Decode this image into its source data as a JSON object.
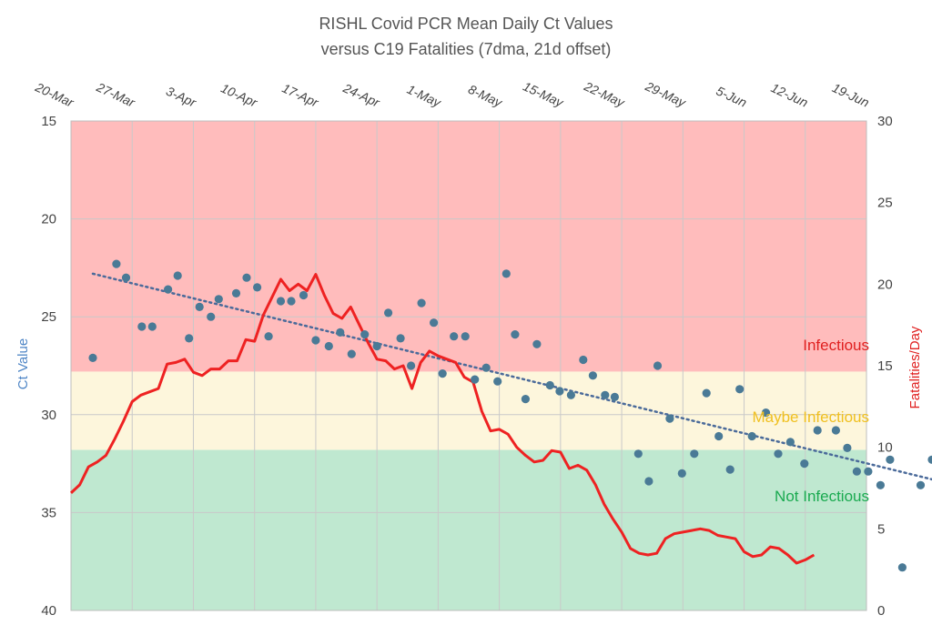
{
  "chart_data": {
    "type": "scatter",
    "title": "RISHL Covid PCR Mean Daily Ct Values",
    "subtitle": "versus C19 Fatalities (7dma, 21d offset)",
    "x_tick_labels": [
      "20-Mar",
      "27-Mar",
      "3-Apr",
      "10-Apr",
      "17-Apr",
      "24-Apr",
      "1-May",
      "8-May",
      "15-May",
      "22-May",
      "29-May",
      "5-Jun",
      "12-Jun",
      "19-Jun"
    ],
    "y_left": {
      "label": "Ct Value",
      "min": 15,
      "max": 40,
      "inverted": true,
      "ticks": [
        15,
        20,
        25,
        30,
        35,
        40
      ]
    },
    "y_right": {
      "label": "Fatalities/Day",
      "min": 0,
      "max": 30,
      "ticks": [
        0,
        5,
        10,
        15,
        20,
        25,
        30
      ]
    },
    "zones": [
      {
        "label": "Infectious",
        "ct_from": 15,
        "ct_to": 27.8,
        "color": "#ffbcbc",
        "text_color": "#e02020"
      },
      {
        "label": "Maybe Infectious",
        "ct_from": 27.8,
        "ct_to": 31.8,
        "color": "#fdf6dc",
        "text_color": "#f0c020"
      },
      {
        "label": "Not Infectious",
        "ct_from": 31.8,
        "ct_to": 40,
        "color": "#bfe8d0",
        "text_color": "#1aaa50"
      }
    ],
    "series": [
      {
        "kind": "ct_scatter",
        "axis": "left",
        "color": "#4a7a96",
        "points": [
          [
            2.5,
            27.1
          ],
          [
            5.2,
            22.3
          ],
          [
            6.3,
            23.0
          ],
          [
            8.1,
            25.5
          ],
          [
            9.3,
            25.5
          ],
          [
            11.1,
            23.6
          ],
          [
            12.2,
            22.9
          ],
          [
            13.5,
            26.1
          ],
          [
            14.7,
            24.5
          ],
          [
            16.0,
            25.0
          ],
          [
            16.9,
            24.1
          ],
          [
            18.9,
            23.8
          ],
          [
            20.1,
            23.0
          ],
          [
            21.3,
            23.5
          ],
          [
            22.6,
            26.0
          ],
          [
            24.0,
            24.2
          ],
          [
            25.2,
            24.2
          ],
          [
            26.6,
            23.9
          ],
          [
            28.0,
            26.2
          ],
          [
            29.5,
            26.5
          ],
          [
            30.8,
            25.8
          ],
          [
            32.1,
            26.9
          ],
          [
            33.6,
            25.9
          ],
          [
            35.0,
            26.5
          ],
          [
            36.3,
            24.8
          ],
          [
            37.7,
            26.1
          ],
          [
            38.9,
            27.5
          ],
          [
            40.1,
            24.3
          ],
          [
            41.5,
            25.3
          ],
          [
            42.5,
            27.9
          ],
          [
            43.8,
            26.0
          ],
          [
            45.1,
            26.0
          ],
          [
            46.2,
            28.2
          ],
          [
            47.5,
            27.6
          ],
          [
            48.8,
            28.3
          ],
          [
            49.8,
            22.8
          ],
          [
            50.8,
            25.9
          ],
          [
            52.0,
            29.2
          ],
          [
            53.3,
            26.4
          ],
          [
            54.8,
            28.5
          ],
          [
            55.9,
            28.8
          ],
          [
            57.2,
            29.0
          ],
          [
            58.6,
            27.2
          ],
          [
            59.7,
            28.0
          ],
          [
            61.1,
            29.0
          ],
          [
            62.2,
            29.1
          ],
          [
            64.9,
            32.0
          ],
          [
            66.1,
            33.4
          ],
          [
            67.1,
            27.5
          ],
          [
            68.5,
            30.2
          ],
          [
            69.9,
            33.0
          ],
          [
            71.3,
            32.0
          ],
          [
            72.7,
            28.9
          ],
          [
            74.1,
            31.1
          ],
          [
            75.4,
            32.8
          ],
          [
            76.5,
            28.7
          ],
          [
            77.9,
            31.1
          ],
          [
            79.5,
            29.9
          ],
          [
            80.9,
            32.0
          ],
          [
            82.3,
            31.4
          ],
          [
            83.9,
            32.5
          ],
          [
            85.4,
            30.8
          ],
          [
            87.5,
            30.8
          ],
          [
            88.8,
            31.7
          ],
          [
            89.9,
            32.9
          ],
          [
            91.2,
            32.9
          ],
          [
            92.6,
            33.6
          ],
          [
            93.7,
            32.3
          ],
          [
            95.1,
            37.8
          ],
          [
            97.2,
            33.6
          ],
          [
            98.5,
            32.3
          ],
          [
            99.9,
            33.3
          ],
          [
            101.2,
            32.4
          ]
        ]
      },
      {
        "kind": "trend",
        "axis": "left",
        "color": "#4a6a9a",
        "points": [
          [
            2.5,
            22.8
          ],
          [
            101.2,
            33.6
          ]
        ]
      },
      {
        "kind": "fatalities_line",
        "axis": "right",
        "color": "#ee2222",
        "points": [
          [
            0,
            7.2
          ],
          [
            1,
            7.7
          ],
          [
            2,
            8.8
          ],
          [
            3,
            9.1
          ],
          [
            4,
            9.5
          ],
          [
            5,
            10.5
          ],
          [
            6,
            11.6
          ],
          [
            7,
            12.8
          ],
          [
            8,
            13.2
          ],
          [
            9,
            13.4
          ],
          [
            10,
            13.6
          ],
          [
            11,
            15.1
          ],
          [
            12,
            15.2
          ],
          [
            13,
            15.4
          ],
          [
            14,
            14.6
          ],
          [
            15,
            14.4
          ],
          [
            16,
            14.8
          ],
          [
            17,
            14.8
          ],
          [
            18,
            15.3
          ],
          [
            19,
            15.3
          ],
          [
            20,
            16.6
          ],
          [
            21,
            16.5
          ],
          [
            22,
            18.1
          ],
          [
            23,
            19.2
          ],
          [
            24,
            20.3
          ],
          [
            25,
            19.6
          ],
          [
            26,
            20.0
          ],
          [
            27,
            19.6
          ],
          [
            28,
            20.6
          ],
          [
            29,
            19.3
          ],
          [
            30,
            18.2
          ],
          [
            31,
            17.9
          ],
          [
            32,
            18.6
          ],
          [
            33,
            17.5
          ],
          [
            34,
            16.4
          ],
          [
            35,
            15.4
          ],
          [
            36,
            15.3
          ],
          [
            37,
            14.8
          ],
          [
            38,
            15.0
          ],
          [
            39,
            13.6
          ],
          [
            40,
            15.2
          ],
          [
            41,
            15.9
          ],
          [
            42,
            15.6
          ],
          [
            43,
            15.4
          ],
          [
            44,
            15.2
          ],
          [
            45,
            14.3
          ],
          [
            46,
            14.0
          ],
          [
            47,
            12.2
          ],
          [
            48,
            11.0
          ],
          [
            49,
            11.1
          ],
          [
            50,
            10.8
          ],
          [
            51,
            10.0
          ],
          [
            52,
            9.5
          ],
          [
            53,
            9.1
          ],
          [
            54,
            9.2
          ],
          [
            55,
            9.8
          ],
          [
            56,
            9.7
          ],
          [
            57,
            8.7
          ],
          [
            58,
            8.9
          ],
          [
            59,
            8.6
          ],
          [
            60,
            7.7
          ],
          [
            61,
            6.5
          ],
          [
            62,
            5.6
          ],
          [
            63,
            4.8
          ],
          [
            64,
            3.8
          ],
          [
            65,
            3.5
          ],
          [
            66,
            3.4
          ],
          [
            67,
            3.5
          ],
          [
            68,
            4.4
          ],
          [
            69,
            4.7
          ],
          [
            70,
            4.8
          ],
          [
            71,
            4.9
          ],
          [
            72,
            5.0
          ],
          [
            73,
            4.9
          ],
          [
            74,
            4.6
          ],
          [
            75,
            4.5
          ],
          [
            76,
            4.4
          ],
          [
            77,
            3.6
          ],
          [
            78,
            3.3
          ],
          [
            79,
            3.4
          ],
          [
            80,
            3.9
          ],
          [
            81,
            3.8
          ],
          [
            82,
            3.4
          ],
          [
            83,
            2.9
          ],
          [
            84,
            3.1
          ],
          [
            85,
            3.4
          ]
        ]
      }
    ]
  }
}
